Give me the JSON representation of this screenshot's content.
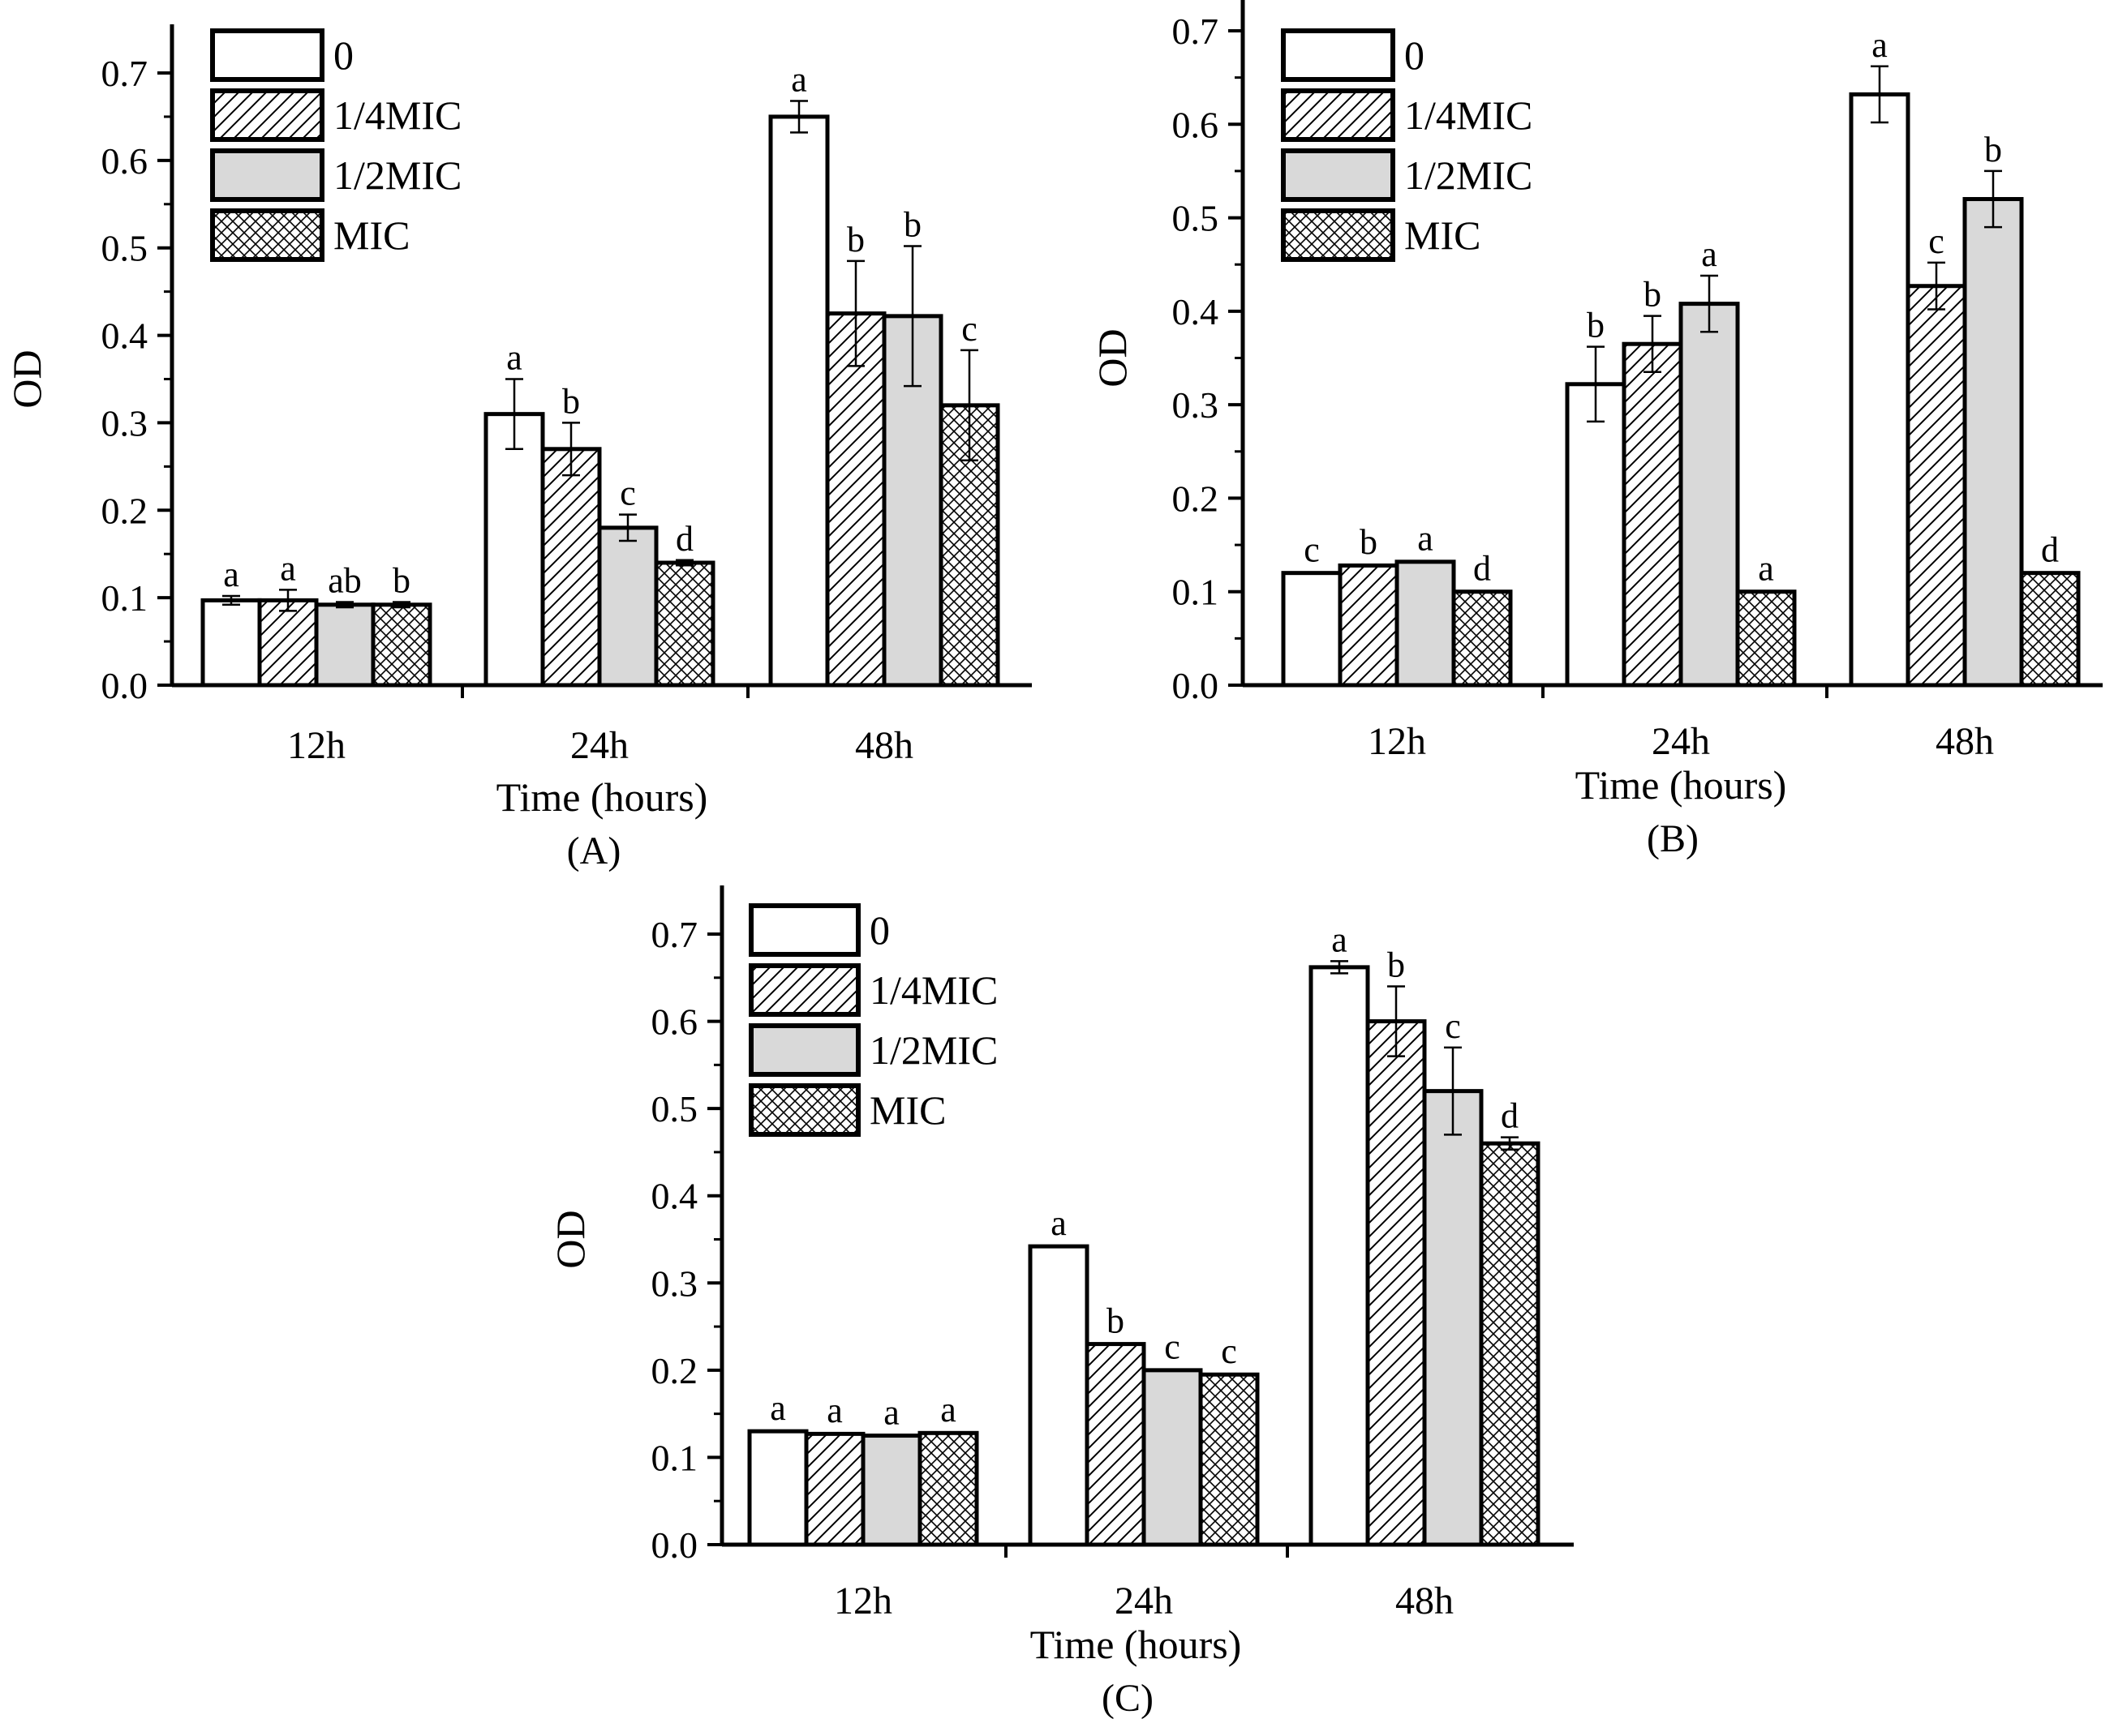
{
  "figure": {
    "legend_entries": [
      "0",
      "1/4MIC",
      "1/2MIC",
      "MIC"
    ]
  },
  "chart_data": [
    {
      "type": "bar",
      "panel_label": "(A)",
      "xlabel": "Time (hours)",
      "ylabel": "OD",
      "ylim": [
        0,
        0.7
      ],
      "yticks": [
        "0.0",
        "0.1",
        "0.2",
        "0.3",
        "0.4",
        "0.5",
        "0.6",
        "0.7"
      ],
      "categories": [
        "12h",
        "24h",
        "48h"
      ],
      "legend_position": "top-left",
      "series": [
        {
          "name": "0",
          "pattern": "white",
          "values": [
            0.097,
            0.31,
            0.65
          ],
          "errors": [
            0.005,
            0.04,
            0.018
          ],
          "letters": [
            "a",
            "a",
            "a"
          ]
        },
        {
          "name": "1/4MIC",
          "pattern": "hatch",
          "values": [
            0.097,
            0.27,
            0.425
          ],
          "errors": [
            0.012,
            0.03,
            0.06
          ],
          "letters": [
            "a",
            "b",
            "b"
          ]
        },
        {
          "name": "1/2MIC",
          "pattern": "gray",
          "values": [
            0.092,
            0.18,
            0.422
          ],
          "errors": [
            0.003,
            0.015,
            0.08
          ],
          "letters": [
            "ab",
            "c",
            "b"
          ]
        },
        {
          "name": "MIC",
          "pattern": "cross",
          "values": [
            0.092,
            0.14,
            0.32
          ],
          "errors": [
            0.003,
            0.003,
            0.063
          ],
          "letters": [
            "b",
            "d",
            "c"
          ]
        }
      ]
    },
    {
      "type": "bar",
      "panel_label": "(B)",
      "xlabel": "Time (hours)",
      "ylabel": "OD",
      "ylim": [
        0,
        0.7
      ],
      "yticks": [
        "0.0",
        "0.1",
        "0.2",
        "0.3",
        "0.4",
        "0.5",
        "0.6",
        "0.7"
      ],
      "categories": [
        "12h",
        "24h",
        "48h"
      ],
      "legend_position": "top-left",
      "series": [
        {
          "name": "0",
          "pattern": "white",
          "values": [
            0.12,
            0.322,
            0.632
          ],
          "errors": [
            0.002,
            0.04,
            0.03
          ],
          "letters": [
            "c",
            "b",
            "a"
          ]
        },
        {
          "name": "1/4MIC",
          "pattern": "hatch",
          "values": [
            0.128,
            0.365,
            0.427
          ],
          "errors": [
            0.002,
            0.03,
            0.025
          ],
          "letters": [
            "b",
            "b",
            "c"
          ]
        },
        {
          "name": "1/2MIC",
          "pattern": "gray",
          "values": [
            0.132,
            0.408,
            0.52
          ],
          "errors": [
            0.002,
            0.03,
            0.03
          ],
          "letters": [
            "a",
            "a",
            "b"
          ]
        },
        {
          "name": "MIC",
          "pattern": "cross",
          "values": [
            0.1,
            0.1,
            0.12
          ],
          "errors": [
            0.002,
            0.002,
            0.002
          ],
          "letters": [
            "d",
            "a",
            "d"
          ]
        }
      ]
    },
    {
      "type": "bar",
      "panel_label": "(C)",
      "xlabel": "Time (hours)",
      "ylabel": "OD",
      "ylim": [
        0,
        0.7
      ],
      "yticks": [
        "0.0",
        "0.1",
        "0.2",
        "0.3",
        "0.4",
        "0.5",
        "0.6",
        "0.7"
      ],
      "categories": [
        "12h",
        "24h",
        "48h"
      ],
      "legend_position": "top-left",
      "series": [
        {
          "name": "0",
          "pattern": "white",
          "values": [
            0.13,
            0.342,
            0.662
          ],
          "errors": [
            0.002,
            0.002,
            0.007
          ],
          "letters": [
            "a",
            "a",
            "a"
          ]
        },
        {
          "name": "1/4MIC",
          "pattern": "hatch",
          "values": [
            0.127,
            0.23,
            0.6
          ],
          "errors": [
            0.002,
            0.002,
            0.04
          ],
          "letters": [
            "a",
            "b",
            "b"
          ]
        },
        {
          "name": "1/2MIC",
          "pattern": "gray",
          "values": [
            0.125,
            0.2,
            0.52
          ],
          "errors": [
            0.002,
            0.002,
            0.05
          ],
          "letters": [
            "a",
            "c",
            "c"
          ]
        },
        {
          "name": "MIC",
          "pattern": "cross",
          "values": [
            0.128,
            0.195,
            0.46
          ],
          "errors": [
            0.002,
            0.002,
            0.007
          ],
          "letters": [
            "a",
            "c",
            "d"
          ]
        }
      ]
    }
  ]
}
